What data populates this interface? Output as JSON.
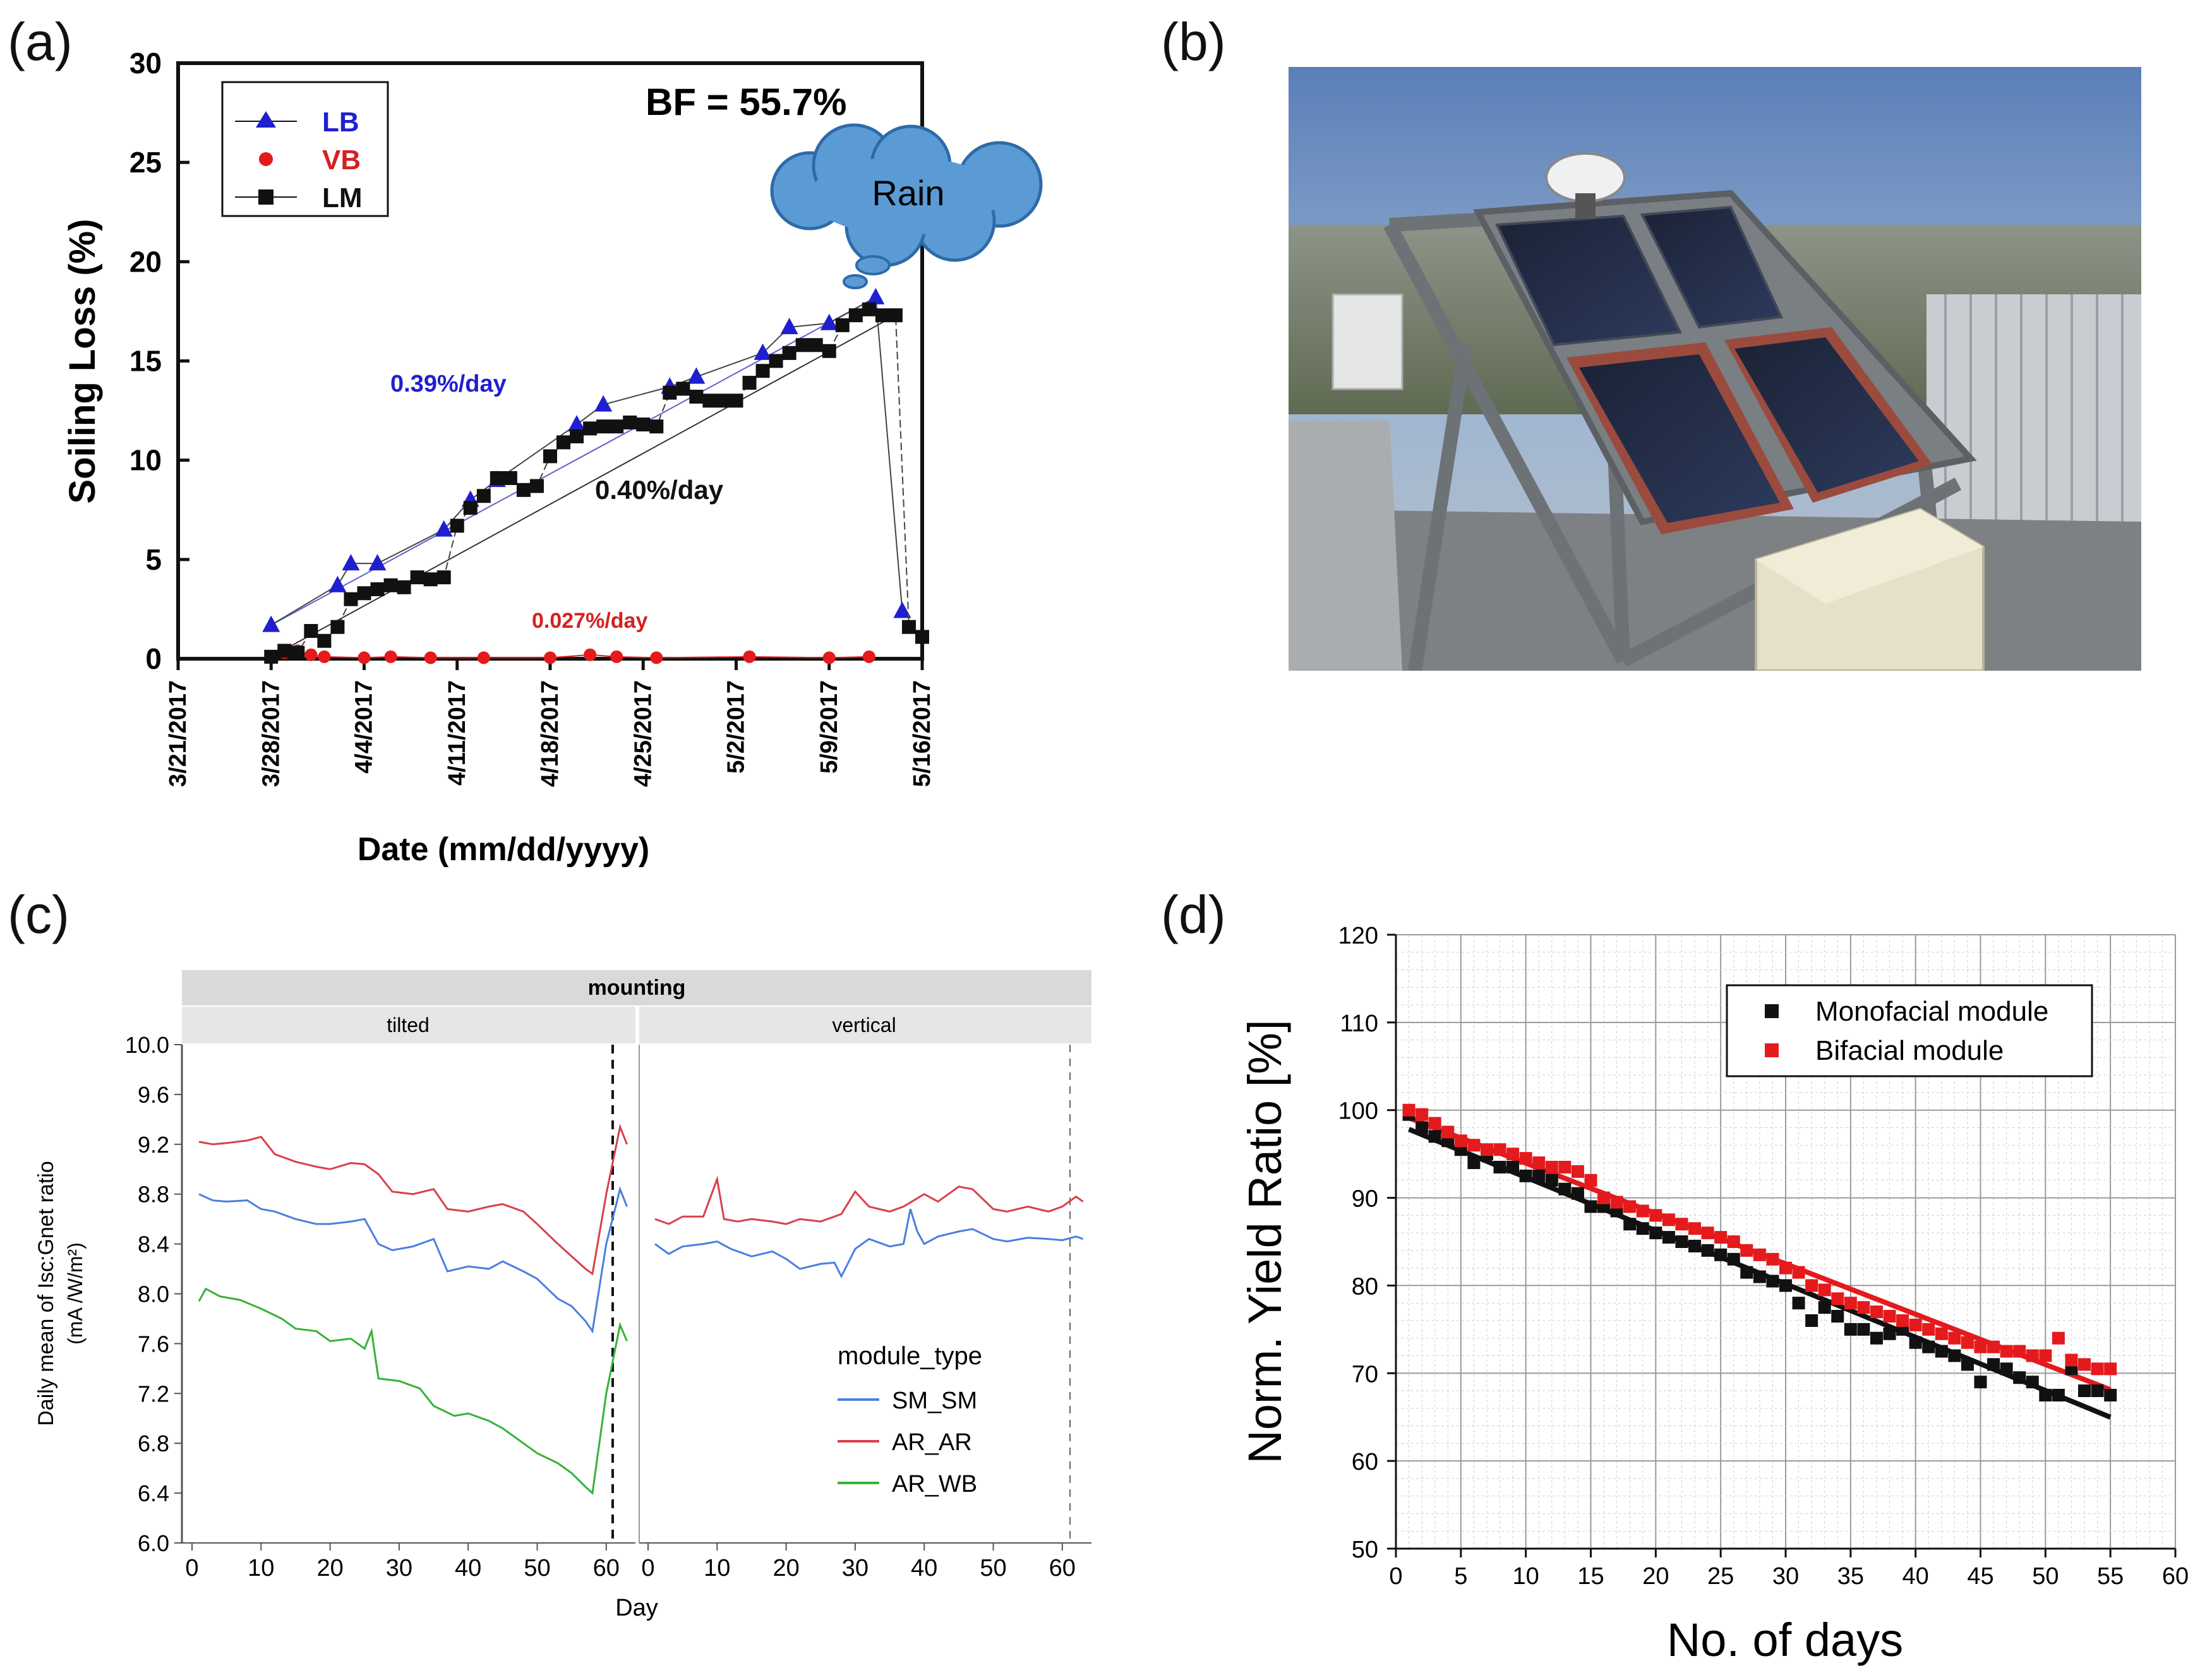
{
  "labels": {
    "a": "(a)",
    "b": "(b)",
    "c": "(c)",
    "d": "(d)"
  },
  "colors": {
    "blue": "#1f1fd0",
    "red": "#e41a1c",
    "black": "#111111",
    "cloud": "#5b9bd5",
    "sm_sm": "#4a7fe0",
    "ar_ar": "#d9404a",
    "ar_wb": "#35b335"
  },
  "chart_data": [
    {
      "panel": "a",
      "type": "scatter",
      "ylabel": "Soiling Loss (%)",
      "xlabel": "Date (mm/dd/yyyy)",
      "ylim": [
        0,
        30
      ],
      "yticks": [
        "0",
        "5",
        "10",
        "15",
        "20",
        "25",
        "30"
      ],
      "xlim_days": [
        0,
        56
      ],
      "xticks": [
        "3/21/2017",
        "3/28/2017",
        "4/4/2017",
        "4/11/2017",
        "4/18/2017",
        "4/25/2017",
        "5/2/2017",
        "5/9/2017",
        "5/16/2017"
      ],
      "annotations": {
        "bf": "BF = 55.7%",
        "rain": "Rain",
        "rate_lb": "0.39%/day",
        "rate_lm": "0.40%/day",
        "rate_vb": "0.027%/day"
      },
      "legend": [
        "LB",
        "VB",
        "LM"
      ],
      "series": [
        {
          "name": "LB",
          "marker": "triangle",
          "x": [
            7,
            12,
            13,
            15,
            20,
            22,
            24,
            30,
            32,
            37,
            39,
            44,
            46,
            49,
            52.5,
            54.5
          ],
          "y": [
            1.7,
            3.7,
            4.8,
            4.8,
            6.5,
            8.0,
            9.0,
            11.8,
            12.8,
            13.7,
            14.2,
            15.4,
            16.7,
            16.9,
            18.2,
            2.4
          ]
        },
        {
          "name": "VB",
          "marker": "circle",
          "x": [
            8,
            9,
            10,
            11,
            14,
            16,
            19,
            23,
            28,
            31,
            33,
            36,
            43,
            49,
            52
          ],
          "y": [
            0.3,
            0.4,
            0.2,
            0.1,
            0.05,
            0.1,
            0.05,
            0.05,
            0.05,
            0.2,
            0.1,
            0.05,
            0.1,
            0.05,
            0.1
          ]
        },
        {
          "name": "LM",
          "marker": "square",
          "x": [
            7,
            8,
            9,
            10,
            11,
            12,
            13,
            14,
            15,
            16,
            17,
            18,
            19,
            20,
            21,
            22,
            23,
            24,
            25,
            26,
            27,
            28,
            29,
            30,
            31,
            32,
            33,
            34,
            35,
            36,
            37,
            38,
            39,
            40,
            41,
            42,
            43,
            44,
            45,
            46,
            47,
            48,
            49,
            50,
            51,
            52,
            53,
            54,
            55,
            56
          ],
          "y": [
            0.1,
            0.4,
            0.3,
            1.4,
            0.9,
            1.6,
            3.0,
            3.3,
            3.5,
            3.7,
            3.6,
            4.1,
            4.0,
            4.1,
            6.7,
            7.6,
            8.2,
            9.1,
            9.1,
            8.5,
            8.7,
            10.2,
            10.9,
            11.2,
            11.6,
            11.7,
            11.7,
            11.9,
            11.8,
            11.7,
            13.4,
            13.6,
            13.2,
            13.0,
            13.0,
            13.0,
            13.9,
            14.5,
            15.0,
            15.4,
            15.8,
            15.8,
            15.5,
            16.8,
            17.3,
            17.6,
            17.3,
            17.3,
            1.6,
            1.1
          ]
        }
      ]
    },
    {
      "panel": "c",
      "type": "line",
      "strip_top": "mounting",
      "facets": [
        "tilted",
        "vertical"
      ],
      "ylabel": "Daily mean of Isc:Gnet ratio",
      "ylabel_units": "(mA /W/m²)",
      "xlabel": "Day",
      "ylim": [
        6.0,
        10.0
      ],
      "yticks": [
        "6.0",
        "6.4",
        "6.8",
        "7.2",
        "7.6",
        "8.0",
        "8.4",
        "8.8",
        "9.2",
        "9.6",
        "10.0"
      ],
      "xticks": [
        "0",
        "10",
        "20",
        "30",
        "40",
        "50",
        "60"
      ],
      "legend_title": "module_type",
      "legend": [
        "SM_SM",
        "AR_AR",
        "AR_WB"
      ],
      "series": [
        {
          "name": "SM_SM",
          "facet": "tilted",
          "x": [
            1,
            3,
            5,
            8,
            10,
            12,
            15,
            18,
            20,
            23,
            25,
            27,
            29,
            32,
            35,
            37,
            40,
            43,
            45,
            48,
            50,
            53,
            55,
            57,
            58,
            60,
            62,
            63
          ],
          "y": [
            8.8,
            8.75,
            8.74,
            8.75,
            8.68,
            8.66,
            8.6,
            8.56,
            8.56,
            8.58,
            8.6,
            8.4,
            8.35,
            8.38,
            8.44,
            8.18,
            8.22,
            8.2,
            8.26,
            8.18,
            8.12,
            7.96,
            7.9,
            7.78,
            7.7,
            8.4,
            8.84,
            8.7
          ]
        },
        {
          "name": "AR_AR",
          "facet": "tilted",
          "x": [
            1,
            3,
            5,
            8,
            10,
            12,
            15,
            18,
            20,
            23,
            25,
            27,
            29,
            32,
            35,
            37,
            40,
            43,
            45,
            48,
            50,
            53,
            55,
            57,
            58,
            60,
            62,
            63
          ],
          "y": [
            9.22,
            9.2,
            9.21,
            9.23,
            9.26,
            9.12,
            9.06,
            9.02,
            9.0,
            9.05,
            9.04,
            8.96,
            8.82,
            8.8,
            8.84,
            8.68,
            8.66,
            8.7,
            8.72,
            8.66,
            8.56,
            8.4,
            8.3,
            8.2,
            8.16,
            8.8,
            9.34,
            9.2
          ]
        },
        {
          "name": "AR_WB",
          "facet": "tilted",
          "x": [
            1,
            2,
            4,
            7,
            10,
            13,
            15,
            18,
            20,
            23,
            25,
            26,
            27,
            30,
            33,
            35,
            38,
            40,
            43,
            45,
            48,
            50,
            53,
            55,
            57,
            58,
            60,
            62,
            63
          ],
          "y": [
            7.94,
            8.04,
            7.98,
            7.95,
            7.88,
            7.8,
            7.72,
            7.7,
            7.62,
            7.64,
            7.56,
            7.7,
            7.32,
            7.3,
            7.24,
            7.1,
            7.02,
            7.04,
            6.98,
            6.92,
            6.8,
            6.72,
            6.64,
            6.56,
            6.45,
            6.4,
            7.2,
            7.75,
            7.62
          ]
        },
        {
          "name": "SM_SM",
          "facet": "vertical",
          "x": [
            1,
            3,
            5,
            8,
            10,
            12,
            15,
            18,
            20,
            22,
            25,
            27,
            28,
            30,
            32,
            35,
            37,
            38,
            39,
            40,
            42,
            45,
            47,
            50,
            52,
            55,
            58,
            60,
            62,
            63
          ],
          "y": [
            8.4,
            8.32,
            8.38,
            8.4,
            8.42,
            8.36,
            8.3,
            8.34,
            8.28,
            8.2,
            8.24,
            8.25,
            8.14,
            8.36,
            8.44,
            8.38,
            8.4,
            8.68,
            8.5,
            8.4,
            8.46,
            8.5,
            8.52,
            8.44,
            8.42,
            8.45,
            8.44,
            8.43,
            8.46,
            8.44
          ]
        },
        {
          "name": "AR_AR",
          "facet": "vertical",
          "x": [
            1,
            3,
            5,
            8,
            10,
            11,
            13,
            15,
            18,
            20,
            22,
            25,
            28,
            30,
            32,
            35,
            37,
            40,
            42,
            45,
            47,
            50,
            52,
            55,
            58,
            60,
            62,
            63
          ],
          "y": [
            8.6,
            8.56,
            8.62,
            8.62,
            8.92,
            8.6,
            8.58,
            8.6,
            8.58,
            8.56,
            8.6,
            8.58,
            8.64,
            8.82,
            8.7,
            8.66,
            8.7,
            8.8,
            8.74,
            8.86,
            8.84,
            8.68,
            8.66,
            8.7,
            8.66,
            8.7,
            8.78,
            8.74
          ]
        }
      ]
    },
    {
      "panel": "d",
      "type": "scatter",
      "ylabel": "Norm.  Yield Ratio [%]",
      "xlabel": "No. of days",
      "xlim": [
        0,
        60
      ],
      "ylim": [
        50,
        120
      ],
      "xticks": [
        "0",
        "5",
        "10",
        "15",
        "20",
        "25",
        "30",
        "35",
        "40",
        "45",
        "50",
        "55",
        "60"
      ],
      "yticks": [
        "50",
        "60",
        "70",
        "80",
        "90",
        "100",
        "110",
        "120"
      ],
      "legend": [
        "Monofacial module",
        "Bifacial module"
      ],
      "series": [
        {
          "name": "Monofacial module",
          "x": [
            1,
            2,
            3,
            4,
            5,
            6,
            7,
            8,
            9,
            10,
            11,
            12,
            13,
            14,
            15,
            16,
            17,
            18,
            19,
            20,
            21,
            22,
            23,
            24,
            25,
            26,
            27,
            28,
            29,
            30,
            31,
            32,
            33,
            34,
            35,
            36,
            37,
            38,
            39,
            40,
            41,
            42,
            43,
            44,
            45,
            46,
            47,
            48,
            49,
            50,
            51,
            52,
            53,
            54,
            55
          ],
          "y": [
            99.5,
            98.0,
            97.0,
            96.5,
            95.5,
            94.0,
            95.0,
            93.5,
            93.5,
            92.5,
            92.5,
            92.0,
            91.0,
            90.5,
            89.0,
            89.0,
            88.5,
            87.0,
            86.5,
            86.0,
            85.5,
            85.0,
            84.5,
            84.0,
            83.5,
            83.0,
            81.5,
            81.0,
            80.5,
            80.0,
            78.0,
            76.0,
            77.5,
            76.5,
            75.0,
            75.0,
            74.0,
            74.5,
            75.0,
            73.5,
            73.0,
            72.5,
            72.0,
            71.0,
            69.0,
            71.0,
            70.5,
            69.5,
            69.0,
            67.5,
            67.5,
            70.5,
            68.0,
            68.0,
            67.5
          ]
        },
        {
          "name": "Bifacial module",
          "x": [
            1,
            2,
            3,
            4,
            5,
            6,
            7,
            8,
            9,
            10,
            11,
            12,
            13,
            14,
            15,
            16,
            17,
            18,
            19,
            20,
            21,
            22,
            23,
            24,
            25,
            26,
            27,
            28,
            29,
            30,
            31,
            32,
            33,
            34,
            35,
            36,
            37,
            38,
            39,
            40,
            41,
            42,
            43,
            44,
            45,
            46,
            47,
            48,
            49,
            50,
            51,
            52,
            53,
            54,
            55
          ],
          "y": [
            100.0,
            99.5,
            98.5,
            97.5,
            96.5,
            96.0,
            95.5,
            95.5,
            95.0,
            94.5,
            94.0,
            93.5,
            93.5,
            93.0,
            92.0,
            90.0,
            89.5,
            89.0,
            88.5,
            88.0,
            87.5,
            87.0,
            86.5,
            86.0,
            85.5,
            85.0,
            84.0,
            83.5,
            83.0,
            82.0,
            81.5,
            80.0,
            79.5,
            78.5,
            78.0,
            77.5,
            77.0,
            76.5,
            76.0,
            75.5,
            75.0,
            74.5,
            74.0,
            73.5,
            73.0,
            73.0,
            72.5,
            72.5,
            72.0,
            72.0,
            74.0,
            71.5,
            71.0,
            70.5,
            70.5
          ]
        }
      ]
    }
  ]
}
